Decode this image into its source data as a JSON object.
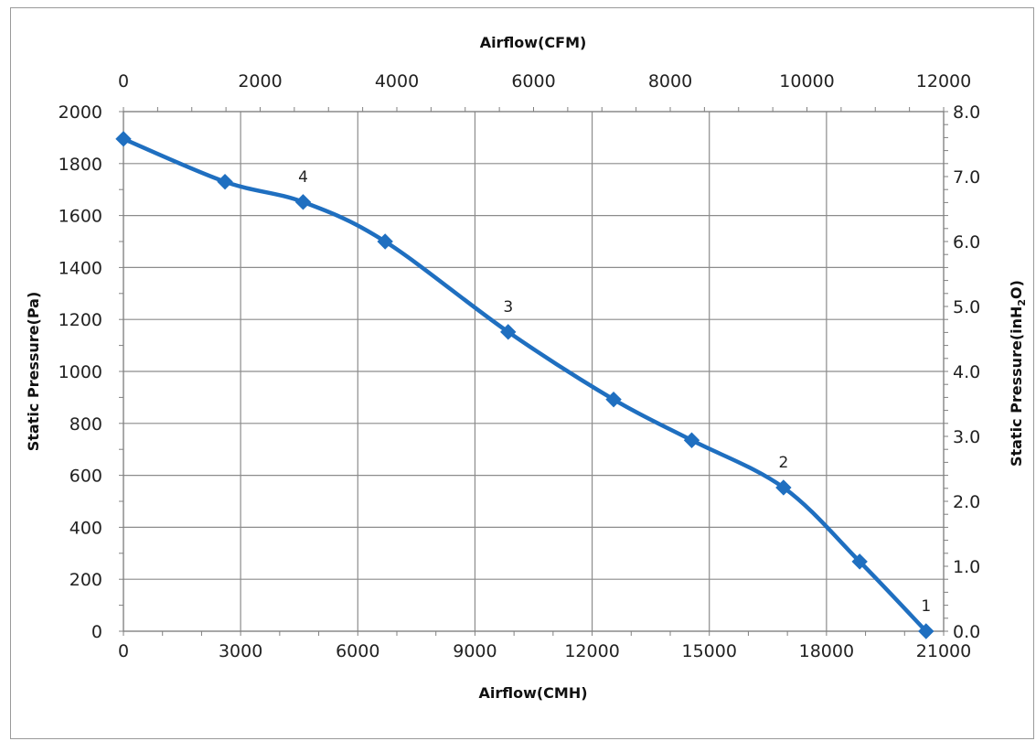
{
  "chart_data": {
    "type": "line",
    "x_bottom_label": "Airflow(CMH)",
    "x_top_label": "Airflow(CFM)",
    "y_left_label": "Static Pressure(Pa)",
    "y_right_label": {
      "prefix": "Static Pressure(inH",
      "subscript": "2",
      "suffix": "O)"
    },
    "x_bottom_range": [
      0,
      21000
    ],
    "x_bottom_ticks": [
      "0",
      "3000",
      "6000",
      "9000",
      "12000",
      "15000",
      "18000",
      "21000"
    ],
    "x_top_range": [
      0,
      12000
    ],
    "x_top_ticks": [
      "0",
      "2000",
      "4000",
      "6000",
      "8000",
      "10000",
      "12000"
    ],
    "y_left_range": [
      0,
      2000
    ],
    "y_left_ticks": [
      "0",
      "200",
      "400",
      "600",
      "800",
      "1000",
      "1200",
      "1400",
      "1600",
      "1800",
      "2000"
    ],
    "y_right_range": [
      0,
      8
    ],
    "y_right_ticks": [
      "0.0",
      "1.0",
      "2.0",
      "3.0",
      "4.0",
      "5.0",
      "6.0",
      "7.0",
      "8.0"
    ],
    "grid": true,
    "series": [
      {
        "color": "#1f6fc0",
        "marker": "diamond",
        "x": [
          0,
          2600,
          4600,
          6700,
          9850,
          12550,
          14550,
          16900,
          18850,
          20550
        ],
        "y": [
          1895,
          1730,
          1652,
          1500,
          1152,
          892,
          735,
          553,
          268,
          0
        ]
      }
    ],
    "annotations": [
      {
        "text": "1",
        "x": 20550,
        "y": 0
      },
      {
        "text": "2",
        "x": 16900,
        "y": 553
      },
      {
        "text": "3",
        "x": 9850,
        "y": 1152
      },
      {
        "text": "4",
        "x": 4600,
        "y": 1652
      }
    ]
  }
}
